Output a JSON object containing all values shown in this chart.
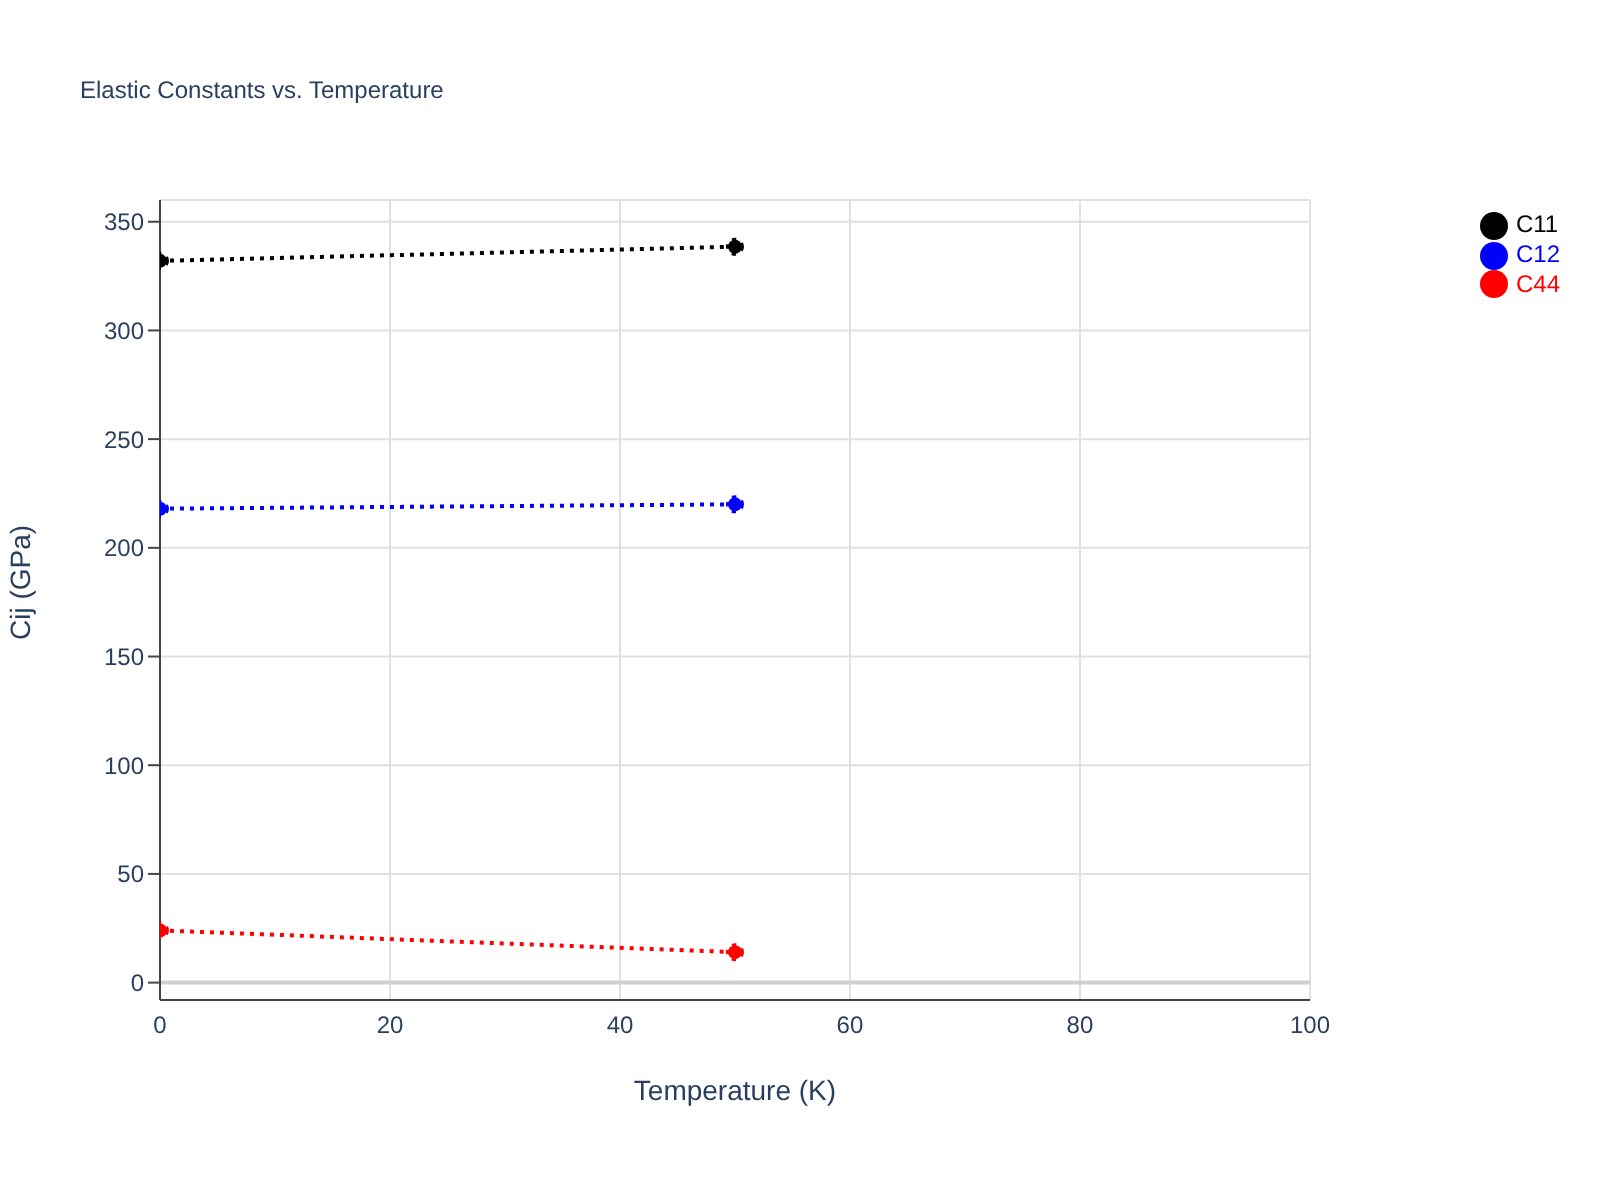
{
  "chart_data": {
    "type": "line",
    "title": "Elastic Constants vs. Temperature",
    "xlabel": "Temperature (K)",
    "ylabel": "Cij (GPa)",
    "x": [
      0,
      50
    ],
    "series": [
      {
        "name": "C11",
        "color": "#000000",
        "values": [
          332,
          338.5
        ]
      },
      {
        "name": "C12",
        "color": "#0000ff",
        "values": [
          218,
          220
        ]
      },
      {
        "name": "C44",
        "color": "#ff0000",
        "values": [
          24,
          14
        ]
      }
    ],
    "xlim": [
      0,
      100
    ],
    "xticks": [
      0,
      20,
      40,
      60,
      80,
      100
    ],
    "ylim": [
      -8,
      360
    ],
    "yticks": [
      0,
      50,
      100,
      150,
      200,
      250,
      300,
      350
    ],
    "grid": true,
    "legend": "top right",
    "marker": "circle",
    "line_style": "dotted"
  }
}
